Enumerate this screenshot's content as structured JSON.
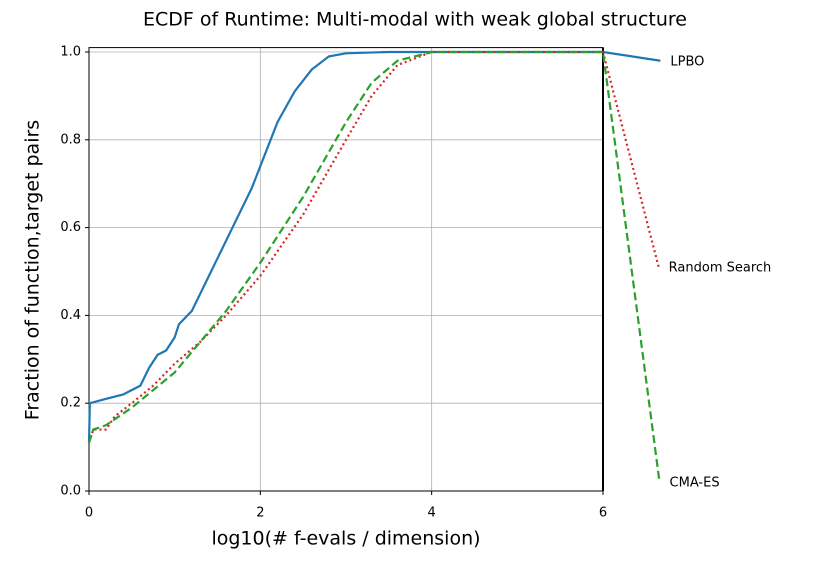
{
  "chart_data": {
    "type": "line",
    "title": "ECDF of Runtime: Multi-modal with weak global structure",
    "x_label": "log10(# f-evals / dimension)",
    "y_label": "Fraction of function,target pairs",
    "xlim": [
      0,
      6
    ],
    "ylim": [
      0,
      1.01
    ],
    "xticks": [
      0,
      2,
      4,
      6
    ],
    "yticks": [
      {
        "value": 0,
        "label": "0.0"
      },
      0.2,
      0.4,
      0.6,
      0.8,
      {
        "value": 1,
        "label": "1.0"
      }
    ],
    "grid": true,
    "series": [
      {
        "name": "LPBO",
        "color": "#1f77b4",
        "dash": "solid",
        "x": [
          0,
          0.01,
          0.2,
          0.4,
          0.6,
          0.7,
          0.8,
          0.9,
          1.0,
          1.05,
          1.2,
          1.3,
          1.4,
          1.5,
          1.6,
          1.7,
          1.8,
          1.9,
          2.0,
          2.1,
          2.2,
          2.4,
          2.6,
          2.8,
          3.0,
          3.5,
          6.0,
          6.67
        ],
        "values": [
          0.11,
          0.2,
          0.21,
          0.22,
          0.24,
          0.28,
          0.31,
          0.32,
          0.35,
          0.38,
          0.41,
          0.45,
          0.49,
          0.53,
          0.57,
          0.61,
          0.65,
          0.69,
          0.74,
          0.79,
          0.84,
          0.91,
          0.96,
          0.99,
          0.997,
          1.0,
          1.0,
          0.98
        ]
      },
      {
        "name": "Random Search",
        "color": "#d62728",
        "dash": "dotted",
        "x": [
          0,
          0.05,
          0.2,
          0.3,
          0.5,
          0.75,
          1.0,
          1.3,
          1.6,
          2.0,
          2.5,
          3.0,
          3.3,
          3.6,
          4.0,
          6.0,
          6.65
        ],
        "values": [
          0.11,
          0.14,
          0.14,
          0.17,
          0.2,
          0.24,
          0.29,
          0.34,
          0.4,
          0.49,
          0.63,
          0.8,
          0.9,
          0.97,
          1.0,
          1.0,
          0.51
        ]
      },
      {
        "name": "CMA-ES",
        "color": "#2ca02c",
        "dash": "dashed",
        "x": [
          0,
          0.05,
          0.2,
          0.5,
          1.0,
          1.3,
          1.6,
          2.0,
          2.5,
          3.0,
          3.3,
          3.6,
          4.0,
          6.0,
          6.66
        ],
        "values": [
          0.11,
          0.14,
          0.15,
          0.19,
          0.27,
          0.34,
          0.41,
          0.52,
          0.67,
          0.84,
          0.93,
          0.98,
          1.0,
          1.0,
          0.02
        ]
      }
    ]
  }
}
